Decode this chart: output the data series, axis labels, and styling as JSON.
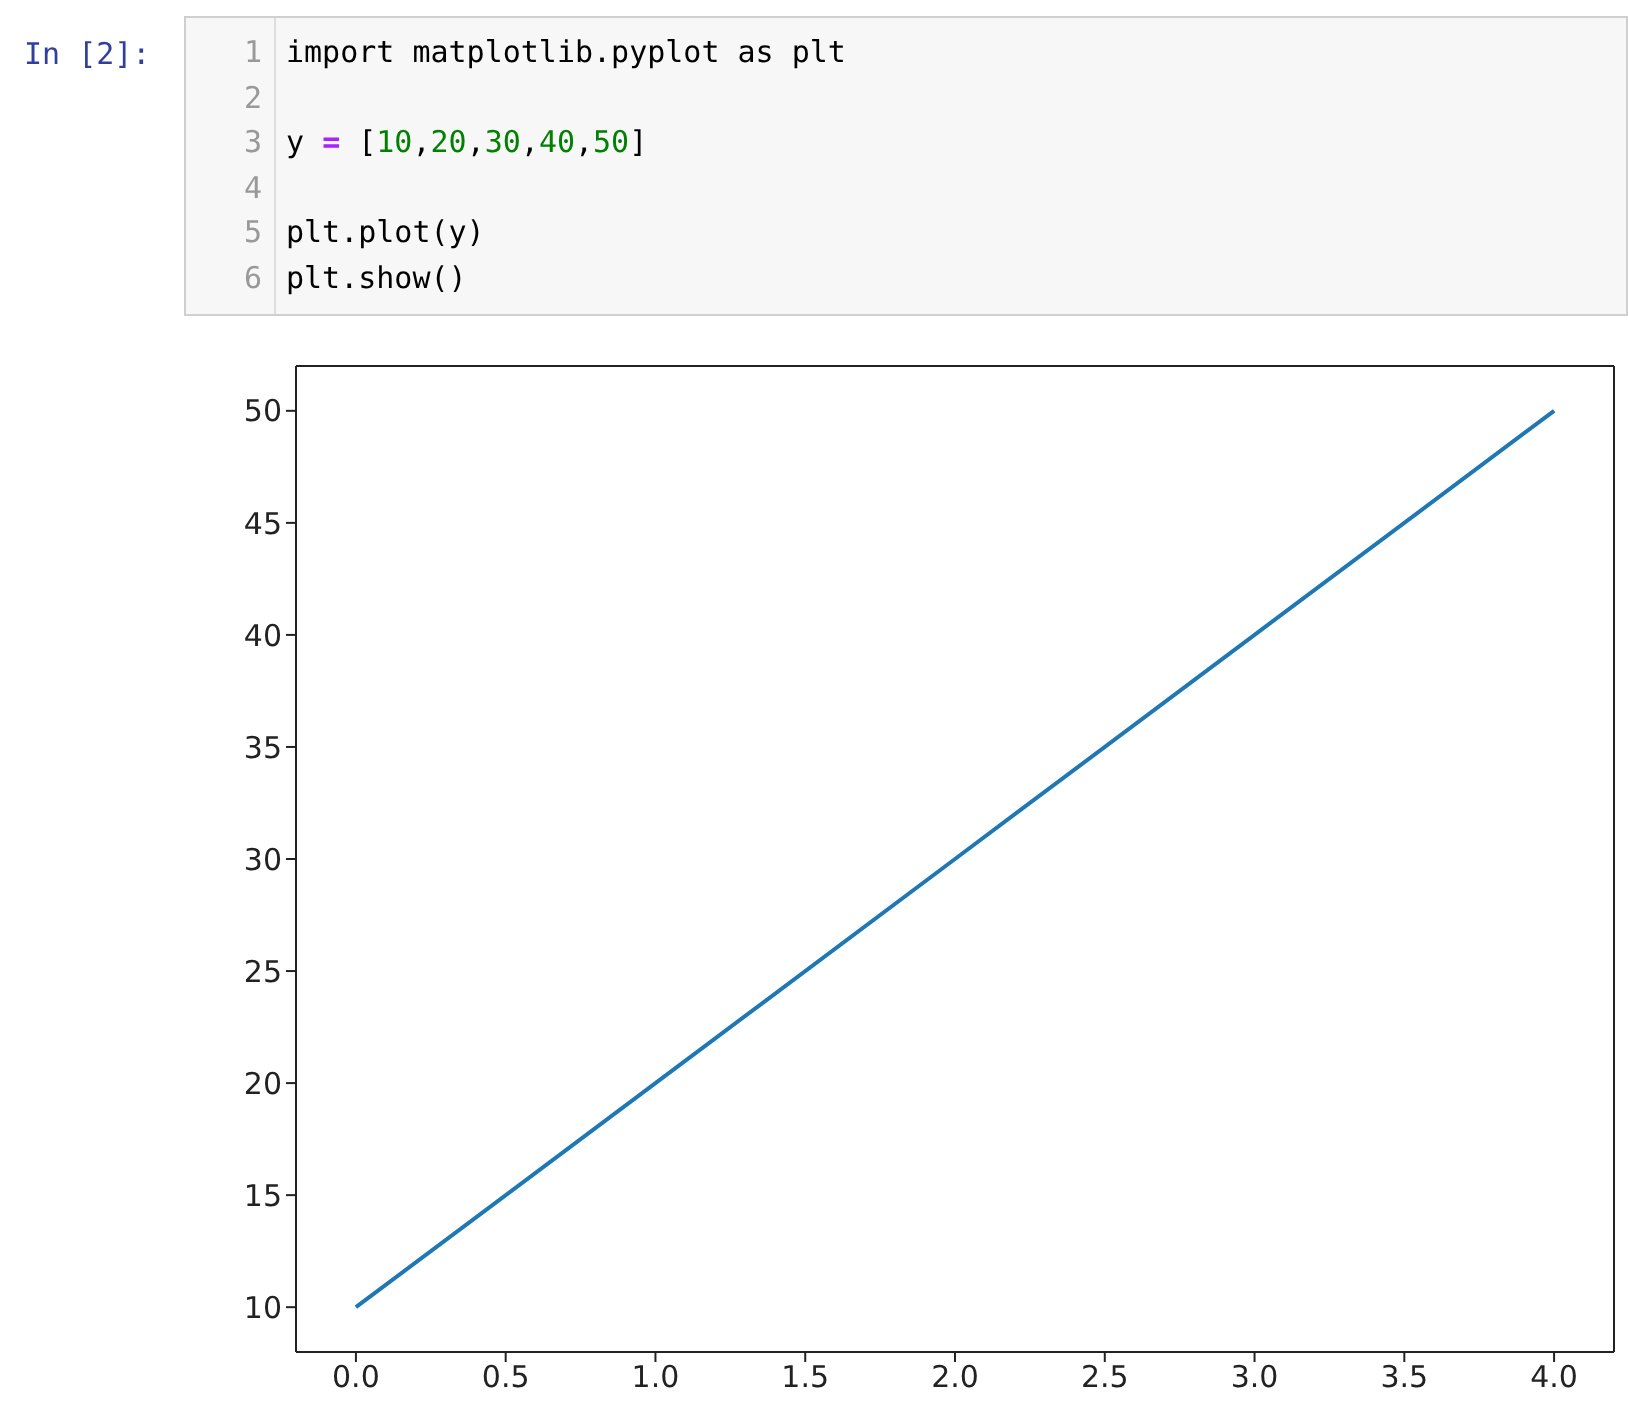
{
  "chart_data": {
    "type": "line",
    "annotations": [
      "In [2]:",
      "1 import matplotlib.pyplot as plt",
      "2",
      "3 y = [10,20,30,40,50]",
      "4",
      "5 plt.plot(y)",
      "6 plt.show()"
    ],
    "x": [
      0,
      1,
      2,
      3,
      4
    ],
    "values": [
      10,
      20,
      30,
      40,
      50
    ],
    "color": "#1f77b4",
    "xlim": [
      -0.2,
      4.2
    ],
    "xticks": [
      {
        "value": 0,
        "label": "0.0"
      },
      {
        "value": 0.5,
        "label": "0.5"
      },
      {
        "value": 1,
        "label": "1.0"
      },
      {
        "value": 1.5,
        "label": "1.5"
      },
      {
        "value": 2,
        "label": "2.0"
      },
      {
        "value": 2.5,
        "label": "2.5"
      },
      {
        "value": 3,
        "label": "3.0"
      },
      {
        "value": 3.5,
        "label": "3.5"
      },
      {
        "value": 4,
        "label": "4.0"
      }
    ],
    "ylim": [
      8,
      52
    ],
    "yticks": [
      10,
      15,
      20,
      25,
      30,
      35,
      40,
      45,
      50
    ]
  }
}
